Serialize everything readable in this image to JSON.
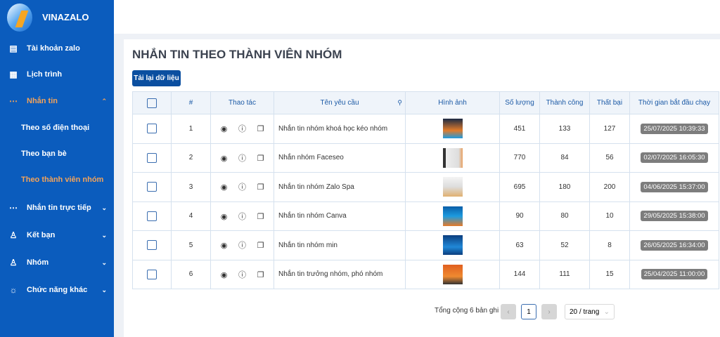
{
  "sidebar": {
    "brand": "VINAZALO",
    "items": [
      {
        "label": "Tài khoản zalo",
        "icon": "list-icon"
      },
      {
        "label": "Lịch trình",
        "icon": "calendar-icon"
      },
      {
        "label": "Nhắn tin",
        "icon": "chat-icon",
        "expanded": true,
        "children": [
          "Theo số điện thoại",
          "Theo bạn bè",
          "Theo thành viên nhóm"
        ]
      },
      {
        "label": "Nhắn tin trực tiếp",
        "icon": "chat-icon"
      },
      {
        "label": "Kết bạn",
        "icon": "user-add-icon"
      },
      {
        "label": "Nhóm",
        "icon": "group-icon"
      },
      {
        "label": "Chức năng khác",
        "icon": "sun-icon"
      }
    ],
    "active_color": "#f3a35a"
  },
  "page": {
    "title": "NHẮN TIN THEO THÀNH VIÊN NHÓM",
    "reload": "Tải lại dữ liệu"
  },
  "table": {
    "headers": [
      "#",
      "Thao tác",
      "Tên yêu cầu",
      "Hình ảnh",
      "Số lượng",
      "Thành công",
      "Thất bại",
      "Thời gian bắt đầu chạy"
    ],
    "rows": [
      {
        "n": "1",
        "name": "Nhắn tin nhóm khoá học kéo nhóm",
        "qty": "451",
        "ok": "133",
        "fail": "127",
        "time": "25/07/2025 10:39:33"
      },
      {
        "n": "2",
        "name": "Nhắn nhóm Faceseo",
        "qty": "770",
        "ok": "84",
        "fail": "56",
        "time": "02/07/2025 16:05:30"
      },
      {
        "n": "3",
        "name": "Nhắn tin nhóm Zalo Spa",
        "qty": "695",
        "ok": "180",
        "fail": "200",
        "time": "04/06/2025 15:37:00"
      },
      {
        "n": "4",
        "name": "Nhắn tin nhóm Canva",
        "qty": "90",
        "ok": "80",
        "fail": "10",
        "time": "29/05/2025 15:38:00"
      },
      {
        "n": "5",
        "name": "Nhắn tin nhóm min",
        "qty": "63",
        "ok": "52",
        "fail": "8",
        "time": "26/05/2025 16:34:00"
      },
      {
        "n": "6",
        "name": "Nhắn tin trưởng nhóm, phó nhóm",
        "qty": "144",
        "ok": "111",
        "fail": "15",
        "time": "25/04/2025 11:00:00"
      }
    ]
  },
  "pagination": {
    "total": "Tổng cộng 6 bản ghi",
    "page": "1",
    "per_page": "20 / trang"
  }
}
